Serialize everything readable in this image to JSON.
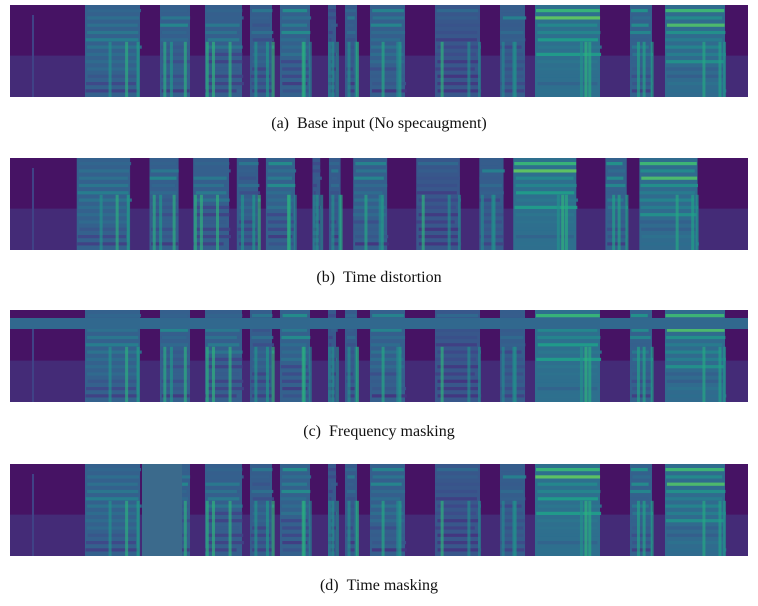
{
  "figures": [
    {
      "label": "(a)",
      "caption": "Base input (No specaugment)"
    },
    {
      "label": "(b)",
      "caption": "Time distortion"
    },
    {
      "label": "(c)",
      "caption": "Frequency masking"
    },
    {
      "label": "(d)",
      "caption": "Time masking"
    }
  ]
}
